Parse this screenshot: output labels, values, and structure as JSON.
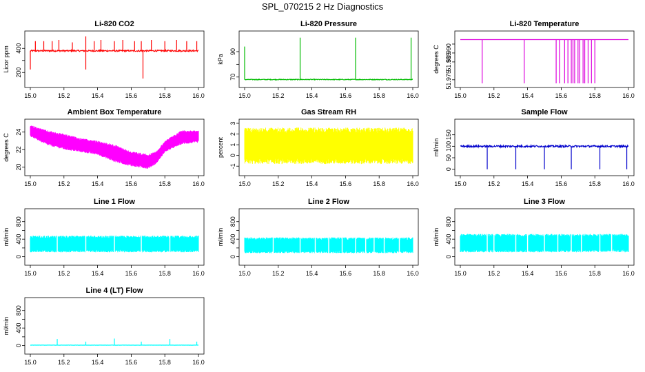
{
  "page": {
    "title": "SPL_070215  2 Hz Diagnostics"
  },
  "chart_data": [
    {
      "type": "line",
      "title": "Li-820 CO2",
      "xlabel": "",
      "ylabel": "Licor ppm",
      "color": "#ff0000",
      "xlim": [
        15.0,
        16.0
      ],
      "ylim": [
        110,
        510
      ],
      "xticks": [
        15.0,
        15.2,
        15.4,
        15.6,
        15.8,
        16.0
      ],
      "xtick_labels": [
        "15.0",
        "15.2",
        "15.4",
        "15.6",
        "15.8",
        "16.0"
      ],
      "yticks": [
        200,
        300,
        400
      ],
      "ytick_labels": [
        "200",
        "",
        "400"
      ],
      "pattern": "spikes",
      "baseline": 380,
      "noise": 6,
      "spikes": [
        [
          15.0,
          225
        ],
        [
          15.03,
          460
        ],
        [
          15.08,
          460
        ],
        [
          15.13,
          460
        ],
        [
          15.17,
          470
        ],
        [
          15.25,
          450
        ],
        [
          15.33,
          500
        ],
        [
          15.33,
          225
        ],
        [
          15.38,
          460
        ],
        [
          15.42,
          470
        ],
        [
          15.5,
          460
        ],
        [
          15.55,
          470
        ],
        [
          15.62,
          460
        ],
        [
          15.67,
          150
        ],
        [
          15.66,
          460
        ],
        [
          15.72,
          470
        ],
        [
          15.8,
          460
        ],
        [
          15.87,
          470
        ],
        [
          15.93,
          460
        ],
        [
          15.99,
          460
        ]
      ]
    },
    {
      "type": "line",
      "title": "Li-820 Pressure",
      "xlabel": "",
      "ylabel": "kPa",
      "color": "#00bb00",
      "xlim": [
        15.0,
        16.0
      ],
      "ylim": [
        65,
        103
      ],
      "xticks": [
        15.0,
        15.2,
        15.4,
        15.6,
        15.8,
        16.0
      ],
      "xtick_labels": [
        "15.0",
        "15.2",
        "15.4",
        "15.6",
        "15.8",
        "16.0"
      ],
      "yticks": [
        70,
        80,
        90
      ],
      "ytick_labels": [
        "70",
        "",
        "90"
      ],
      "pattern": "spikes",
      "baseline": 68,
      "noise": 0.3,
      "spikes": [
        [
          15.0,
          94
        ],
        [
          15.33,
          101
        ],
        [
          15.66,
          101
        ],
        [
          15.99,
          101
        ]
      ]
    },
    {
      "type": "line",
      "title": "Li-820 Temperature",
      "xlabel": "",
      "ylabel": "degrees C",
      "color": "#dd00dd",
      "xlim": [
        15.0,
        16.0
      ],
      "ylim": [
        51.973,
        52.0
      ],
      "xticks": [
        15.0,
        15.2,
        15.4,
        15.6,
        15.8,
        16.0
      ],
      "xtick_labels": [
        "15.0",
        "15.2",
        "15.4",
        "15.6",
        "15.8",
        "16.0"
      ],
      "yticks": [
        51.975,
        51.985,
        51.99,
        51.995
      ],
      "ytick_labels": [
        "51.975",
        "51.985",
        "51.990",
        ""
      ],
      "pattern": "drops",
      "baseline": 51.9975,
      "noise": 0,
      "drops": [
        [
          15.13,
          51.973
        ],
        [
          15.38,
          51.973
        ],
        [
          15.57,
          51.973
        ],
        [
          15.59,
          51.973
        ],
        [
          15.62,
          51.973
        ],
        [
          15.64,
          51.973
        ],
        [
          15.66,
          51.973
        ],
        [
          15.67,
          51.973
        ],
        [
          15.68,
          51.973
        ],
        [
          15.7,
          51.973
        ],
        [
          15.71,
          51.973
        ],
        [
          15.73,
          51.973
        ],
        [
          15.74,
          51.973
        ],
        [
          15.76,
          51.973
        ],
        [
          15.78,
          51.973
        ],
        [
          15.8,
          51.973
        ]
      ]
    },
    {
      "type": "line",
      "title": "Ambient Box Temperature",
      "xlabel": "",
      "ylabel": "degrees C",
      "color": "#ff00ff",
      "xlim": [
        15.0,
        16.0
      ],
      "ylim": [
        19.5,
        25.0
      ],
      "xticks": [
        15.0,
        15.2,
        15.4,
        15.6,
        15.8,
        16.0
      ],
      "xtick_labels": [
        "15.0",
        "15.2",
        "15.4",
        "15.6",
        "15.8",
        "16.0"
      ],
      "yticks": [
        20,
        22,
        24
      ],
      "ytick_labels": [
        "20",
        "22",
        "24"
      ],
      "pattern": "band",
      "x": [
        15.0,
        15.1,
        15.2,
        15.3,
        15.4,
        15.5,
        15.6,
        15.7,
        15.75,
        15.8,
        15.9,
        16.0
      ],
      "upper": [
        24.8,
        24.2,
        23.8,
        23.3,
        23.0,
        22.6,
        21.8,
        21.5,
        21.8,
        23.0,
        24.2,
        24.2
      ],
      "lower": [
        23.5,
        22.5,
        22.0,
        21.7,
        21.4,
        20.6,
        20.1,
        19.8,
        20.4,
        21.7,
        22.6,
        22.8
      ]
    },
    {
      "type": "line",
      "title": "Gas Stream RH",
      "xlabel": "",
      "ylabel": "percent",
      "color": "#ffff00",
      "xlim": [
        15.0,
        16.0
      ],
      "ylim": [
        -1.5,
        3.0
      ],
      "xticks": [
        15.0,
        15.2,
        15.4,
        15.6,
        15.8,
        16.0
      ],
      "xtick_labels": [
        "15.0",
        "15.2",
        "15.4",
        "15.6",
        "15.8",
        "16.0"
      ],
      "yticks": [
        -1,
        0,
        1,
        2,
        3
      ],
      "ytick_labels": [
        "-1",
        "0",
        "1",
        "2",
        "3"
      ],
      "pattern": "band",
      "x": [
        15.0,
        16.0
      ],
      "upper": [
        2.6,
        2.6
      ],
      "lower": [
        -0.8,
        -0.8
      ]
    },
    {
      "type": "line",
      "title": "Sample Flow",
      "xlabel": "",
      "ylabel": "ml/min",
      "color": "#0000cc",
      "xlim": [
        15.0,
        16.0
      ],
      "ylim": [
        -10,
        200
      ],
      "xticks": [
        15.0,
        15.2,
        15.4,
        15.6,
        15.8,
        16.0
      ],
      "xtick_labels": [
        "15.0",
        "15.2",
        "15.4",
        "15.6",
        "15.8",
        "16.0"
      ],
      "yticks": [
        0,
        50,
        100,
        150
      ],
      "ytick_labels": [
        "0",
        "50",
        "100",
        "150"
      ],
      "pattern": "spikes",
      "baseline": 100,
      "noise": 4,
      "spikes": [
        [
          15.16,
          0
        ],
        [
          15.33,
          0
        ],
        [
          15.5,
          0
        ],
        [
          15.66,
          0
        ],
        [
          15.83,
          0
        ],
        [
          15.99,
          0
        ]
      ]
    },
    {
      "type": "line",
      "title": "Line 1 Flow",
      "xlabel": "",
      "ylabel": "ml/min",
      "color": "#00ffff",
      "xlim": [
        15.0,
        16.0
      ],
      "ylim": [
        -100,
        1000
      ],
      "xticks": [
        15.0,
        15.2,
        15.4,
        15.6,
        15.8,
        16.0
      ],
      "xtick_labels": [
        "15.0",
        "15.2",
        "15.4",
        "15.6",
        "15.8",
        "16.0"
      ],
      "yticks": [
        0,
        200,
        400,
        600,
        800
      ],
      "ytick_labels": [
        "0",
        "",
        "400",
        "",
        "800"
      ],
      "pattern": "band",
      "x": [
        15.0,
        16.0
      ],
      "upper": [
        480,
        480
      ],
      "lower": [
        100,
        100
      ],
      "gaps": [
        15.16,
        15.33,
        15.5,
        15.66,
        15.83
      ]
    },
    {
      "type": "line",
      "title": "Line 2 Flow",
      "xlabel": "",
      "ylabel": "ml/min",
      "color": "#00ffff",
      "xlim": [
        15.0,
        16.0
      ],
      "ylim": [
        -100,
        1000
      ],
      "xticks": [
        15.0,
        15.2,
        15.4,
        15.6,
        15.8,
        16.0
      ],
      "xtick_labels": [
        "15.0",
        "15.2",
        "15.4",
        "15.6",
        "15.8",
        "16.0"
      ],
      "yticks": [
        0,
        200,
        400,
        600,
        800
      ],
      "ytick_labels": [
        "0",
        "",
        "400",
        "",
        "800"
      ],
      "pattern": "band",
      "x": [
        15.0,
        16.0
      ],
      "upper": [
        440,
        440
      ],
      "lower": [
        80,
        80
      ],
      "gaps": [
        15.17,
        15.33,
        15.42,
        15.5,
        15.58,
        15.66,
        15.72,
        15.77,
        15.83,
        15.92
      ]
    },
    {
      "type": "line",
      "title": "Line 3 Flow",
      "xlabel": "",
      "ylabel": "ml/min",
      "color": "#00ffff",
      "xlim": [
        15.0,
        16.0
      ],
      "ylim": [
        -100,
        1000
      ],
      "xticks": [
        15.0,
        15.2,
        15.4,
        15.6,
        15.8,
        16.0
      ],
      "xtick_labels": [
        "15.0",
        "15.2",
        "15.4",
        "15.6",
        "15.8",
        "16.0"
      ],
      "yticks": [
        0,
        200,
        400,
        600,
        800
      ],
      "ytick_labels": [
        "0",
        "",
        "400",
        "",
        "800"
      ],
      "pattern": "band",
      "x": [
        15.0,
        16.0
      ],
      "upper": [
        520,
        520
      ],
      "lower": [
        100,
        100
      ],
      "gaps": [
        15.16,
        15.2,
        15.33,
        15.4,
        15.5,
        15.58,
        15.66,
        15.72,
        15.83,
        15.9
      ]
    },
    {
      "type": "line",
      "title": "Line 4 (LT) Flow",
      "xlabel": "",
      "ylabel": "ml/min",
      "color": "#00ffff",
      "xlim": [
        15.0,
        16.0
      ],
      "ylim": [
        -100,
        1000
      ],
      "xticks": [
        15.0,
        15.2,
        15.4,
        15.6,
        15.8,
        16.0
      ],
      "xtick_labels": [
        "15.0",
        "15.2",
        "15.4",
        "15.6",
        "15.8",
        "16.0"
      ],
      "yticks": [
        0,
        200,
        400,
        600,
        800
      ],
      "ytick_labels": [
        "0",
        "",
        "400",
        "",
        "800"
      ],
      "pattern": "spikes",
      "baseline": 10,
      "noise": 2,
      "spikes": [
        [
          15.16,
          150
        ],
        [
          15.33,
          90
        ],
        [
          15.5,
          160
        ],
        [
          15.66,
          90
        ],
        [
          15.83,
          150
        ],
        [
          15.99,
          90
        ]
      ]
    }
  ]
}
